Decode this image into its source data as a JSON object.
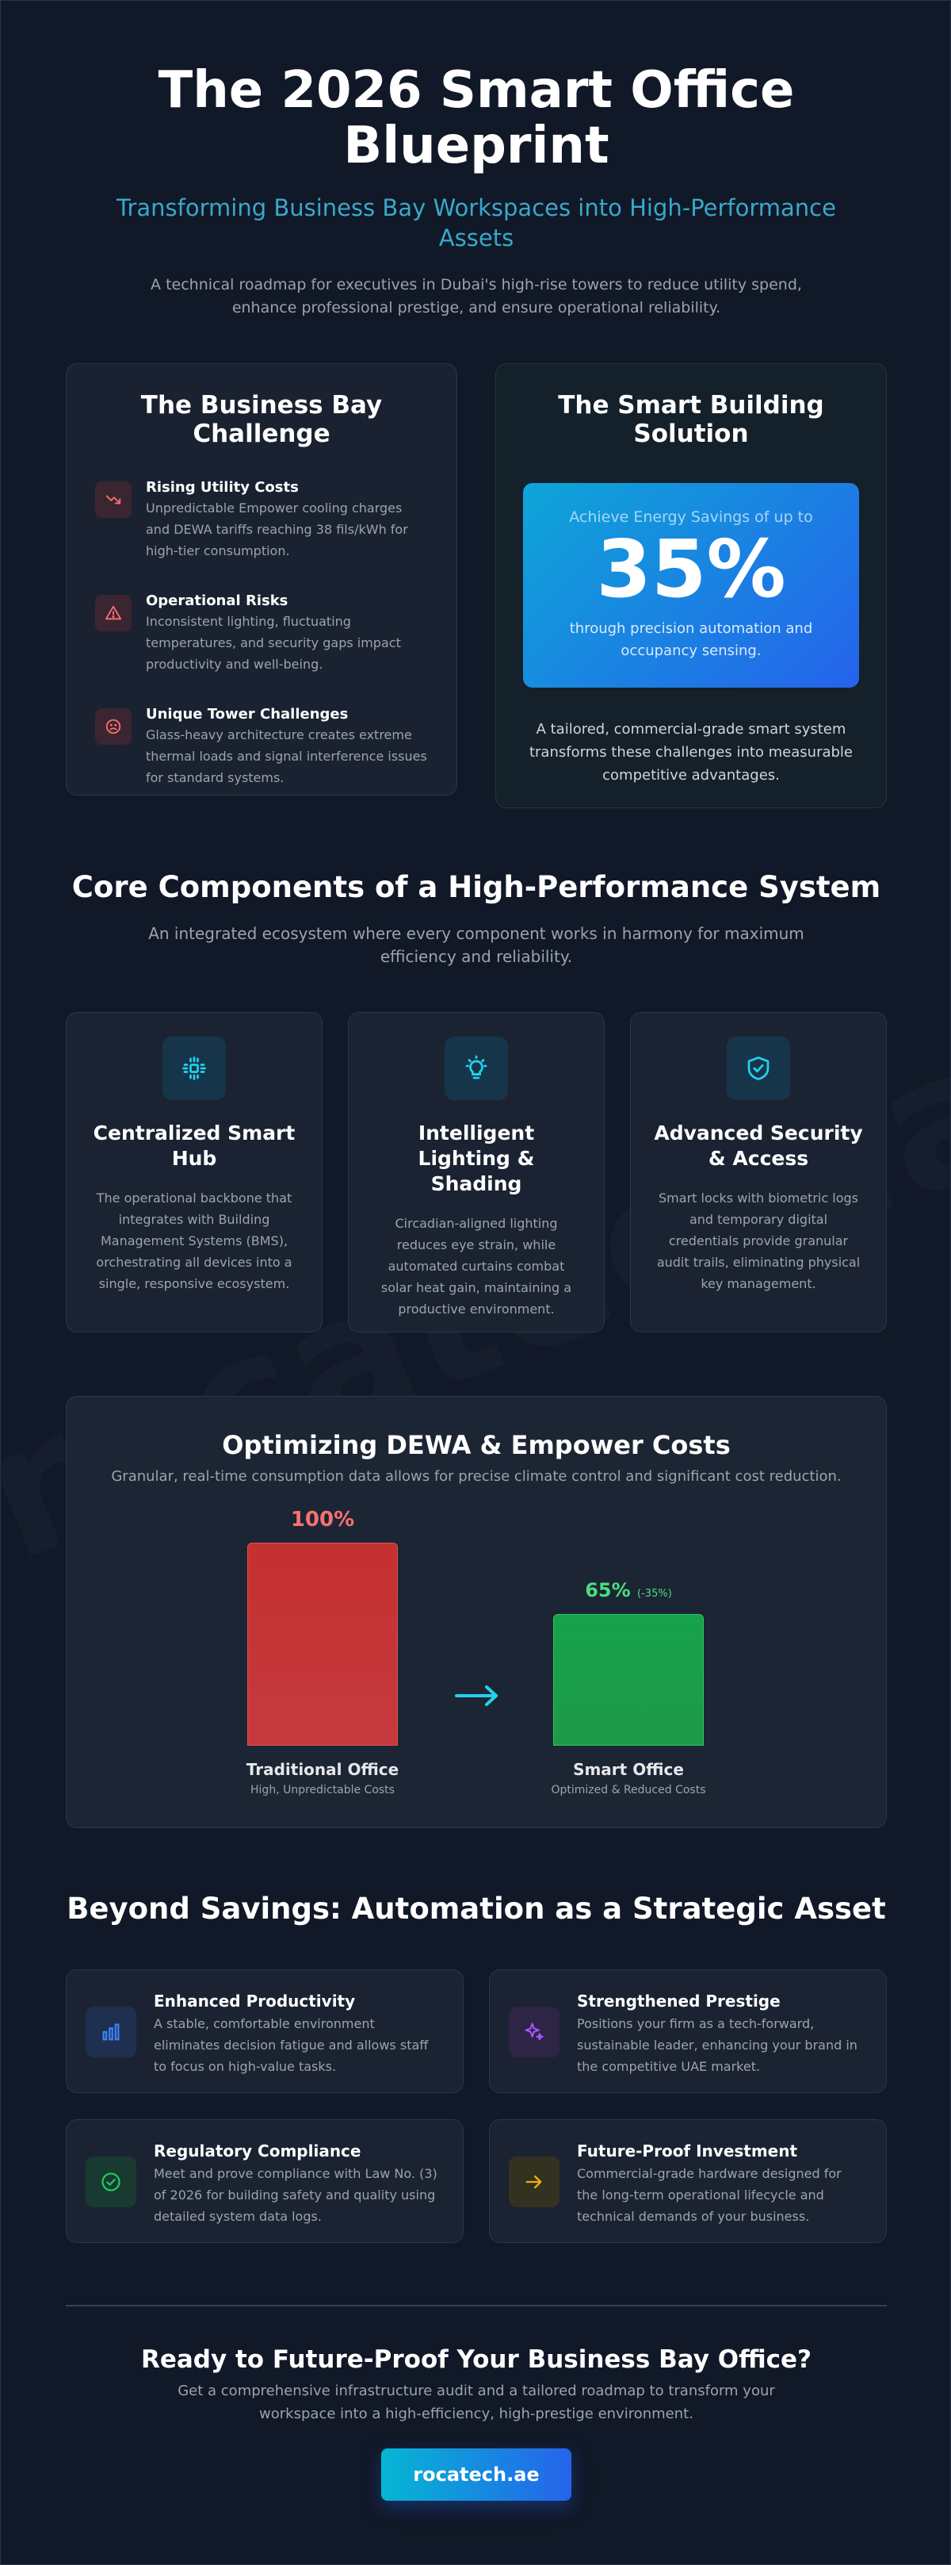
{
  "hero": {
    "title": "The 2026 Smart Office Blueprint",
    "subtitle": "Transforming Business Bay Workspaces into High-Performance Assets",
    "description": "A technical roadmap for executives in Dubai's high-rise towers to reduce utility spend, enhance professional prestige, and ensure operational reliability."
  },
  "challenge": {
    "title": "The Business Bay Challenge",
    "items": [
      {
        "icon": "trending-down-icon",
        "title": "Rising Utility Costs",
        "text": "Unpredictable Empower cooling charges and DEWA tariffs reaching 38 fils/kWh for high-tier consumption."
      },
      {
        "icon": "warning-icon",
        "title": "Operational Risks",
        "text": "Inconsistent lighting, fluctuating temperatures, and security gaps impact productivity and well-being."
      },
      {
        "icon": "frown-icon",
        "title": "Unique Tower Challenges",
        "text": "Glass-heavy architecture creates extreme thermal loads and signal interference issues for standard systems."
      }
    ]
  },
  "solution": {
    "title": "The Smart Building Solution",
    "energy_lead": "Achieve Energy Savings of up to",
    "energy_value": "35%",
    "energy_sub": "through precision automation and occupancy sensing.",
    "description": "A tailored, commercial-grade smart system transforms these challenges into measurable competitive advantages."
  },
  "core": {
    "title": "Core Components of a High-Performance System",
    "subtitle": "An integrated ecosystem where every component works in harmony for maximum efficiency and reliability.",
    "components": [
      {
        "icon": "hub-icon",
        "title": "Centralized Smart Hub",
        "text": "The operational backbone that integrates with Building Management Systems (BMS), orchestrating all devices into a single, responsive ecosystem."
      },
      {
        "icon": "lightbulb-icon",
        "title": "Intelligent Lighting & Shading",
        "text": "Circadian-aligned lighting reduces eye strain, while automated curtains combat solar heat gain, maintaining a productive environment."
      },
      {
        "icon": "shield-check-icon",
        "title": "Advanced Security & Access",
        "text": "Smart locks with biometric logs and temporary digital credentials provide granular audit trails, eliminating physical key management."
      }
    ]
  },
  "dewa": {
    "title": "Optimizing DEWA & Empower Costs",
    "subtitle": "Granular, real-time consumption data allows for precise climate control and significant cost reduction.",
    "traditional_value_label": "100%",
    "smart_value_label": "65%",
    "smart_delta": "(-35%)",
    "traditional_label": "Traditional Office",
    "traditional_sub": "High, Unpredictable Costs",
    "smart_label": "Smart Office",
    "smart_sub": "Optimized & Reduced Costs",
    "traditional_color": "#c53030",
    "smart_color": "#16a34a",
    "arrow_icon": "arrow-right-icon"
  },
  "chart_data": {
    "type": "bar",
    "categories": [
      "Traditional Office",
      "Smart Office"
    ],
    "values": [
      100,
      65
    ],
    "title": "Optimizing DEWA & Empower Costs",
    "xlabel": "",
    "ylabel": "",
    "ylim": [
      0,
      100
    ]
  },
  "beyond": {
    "title": "Beyond Savings: Automation as a Strategic Asset",
    "items": [
      {
        "icon": "bar-chart-icon",
        "title": "Enhanced Productivity",
        "text": "A stable, comfortable environment eliminates decision fatigue and allows staff to focus on high-value tasks.",
        "color": "#3b82f6"
      },
      {
        "icon": "sparkles-icon",
        "title": "Strengthened Prestige",
        "text": "Positions your firm as a tech-forward, sustainable leader, enhancing your brand in the competitive UAE market.",
        "color": "#a855f7"
      },
      {
        "icon": "check-circle-icon",
        "title": "Regulatory Compliance",
        "text": "Meet and prove compliance with Law No. (3) of 2026 for building safety and quality using detailed system data logs.",
        "color": "#22c55e"
      },
      {
        "icon": "arrow-right-icon",
        "title": "Future-Proof Investment",
        "text": "Commercial-grade hardware designed for the long-term operational lifecycle and technical demands of your business.",
        "color": "#eab308"
      }
    ]
  },
  "cta": {
    "title": "Ready to Future-Proof Your Business Bay Office?",
    "subtitle": "Get a comprehensive infrastructure audit and a tailored roadmap to transform your workspace into a high-efficiency, high-prestige environment.",
    "button_label": "rocatech.ae"
  },
  "watermark": "rocatech.ae"
}
